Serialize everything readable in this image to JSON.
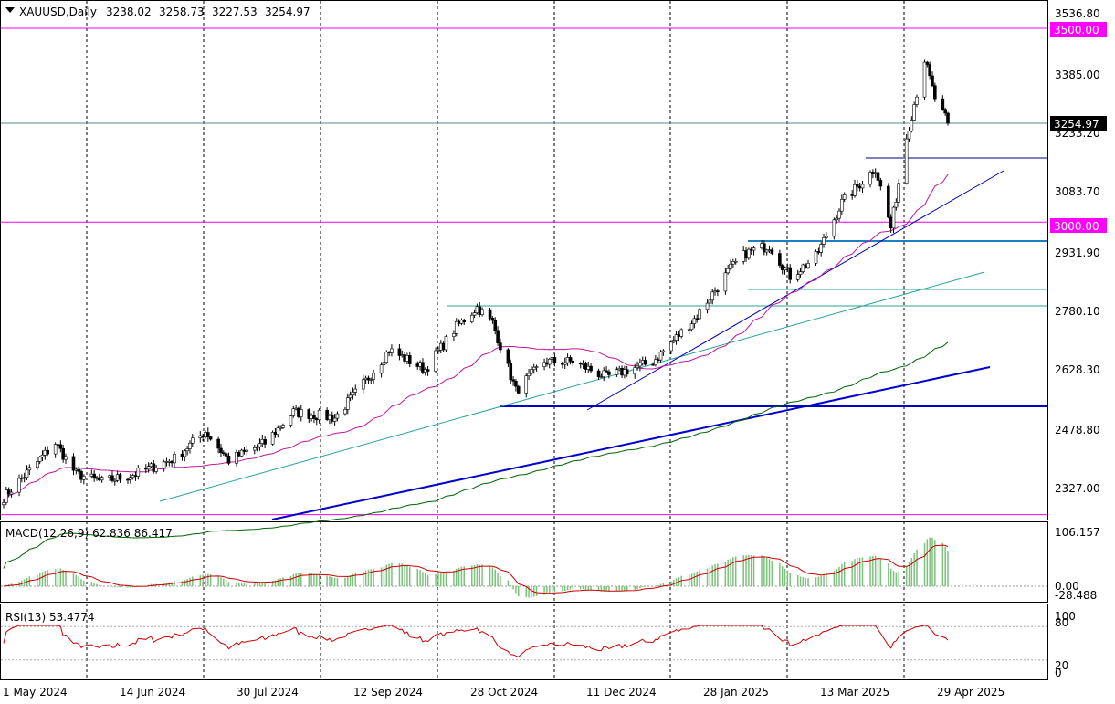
{
  "header": {
    "symbol": "XAUUSD,Daily",
    "open": "3238.02",
    "high": "3258.73",
    "low": "3227.53",
    "close": "3254.97"
  },
  "price_axis": {
    "ticks": [
      "3536.80",
      "3385.00",
      "3233.20",
      "3083.70",
      "2931.90",
      "2780.10",
      "2628.30",
      "2478.80",
      "2327.00"
    ],
    "tick_values": [
      3536.8,
      3385.0,
      3233.2,
      3083.7,
      2931.9,
      2780.1,
      2628.3,
      2478.8,
      2327.0
    ],
    "current_tag": "3254.97",
    "level_tags": [
      "3500.00",
      "3000.00"
    ]
  },
  "time_axis": {
    "labels": [
      "1 May 2024",
      "14 Jun 2024",
      "30 Jul 2024",
      "12 Sep 2024",
      "28 Oct 2024",
      "11 Dec 2024",
      "28 Jan 2025",
      "13 Mar 2025",
      "29 Apr 2025"
    ]
  },
  "macd": {
    "title": "MACD(12,26,9) 62.836 86.417",
    "ticks": [
      "106.157",
      "0.00",
      "-28.488"
    ],
    "tick_values": [
      106.157,
      0,
      -28.488
    ]
  },
  "rsi": {
    "title": "RSI(13) 53.4774",
    "ticks": [
      "100",
      "80",
      "20",
      "0"
    ],
    "tick_values": [
      100,
      80,
      20,
      0
    ]
  },
  "colors": {
    "bull": "#ffffff",
    "bear": "#000000",
    "sma_short": "#c0169c",
    "sma_long": "#006400",
    "trend_blue": "#0000cc",
    "trend_teal": "#2aa198",
    "level_magenta": "#ff00ff",
    "hist": "#7cc27c",
    "signal": "#cc0000"
  },
  "chart_data": {
    "type": "candlestick",
    "title": "XAUUSD,Daily",
    "ylim": [
      2270,
      3560
    ],
    "x_start": "2024-04-30",
    "x_end": "2025-04-30",
    "anchors": [
      {
        "date": "2024-04-30",
        "price": 2290
      },
      {
        "date": "2024-05-10",
        "price": 2360
      },
      {
        "date": "2024-05-20",
        "price": 2430
      },
      {
        "date": "2024-05-28",
        "price": 2350
      },
      {
        "date": "2024-06-07",
        "price": 2330
      },
      {
        "date": "2024-06-20",
        "price": 2350
      },
      {
        "date": "2024-07-05",
        "price": 2390
      },
      {
        "date": "2024-07-17",
        "price": 2460
      },
      {
        "date": "2024-07-26",
        "price": 2385
      },
      {
        "date": "2024-08-09",
        "price": 2430
      },
      {
        "date": "2024-08-20",
        "price": 2510
      },
      {
        "date": "2024-09-05",
        "price": 2495
      },
      {
        "date": "2024-09-17",
        "price": 2590
      },
      {
        "date": "2024-09-26",
        "price": 2670
      },
      {
        "date": "2024-10-10",
        "price": 2620
      },
      {
        "date": "2024-10-22",
        "price": 2730
      },
      {
        "date": "2024-10-30",
        "price": 2780
      },
      {
        "date": "2024-11-05",
        "price": 2740
      },
      {
        "date": "2024-11-14",
        "price": 2565
      },
      {
        "date": "2024-11-25",
        "price": 2640
      },
      {
        "date": "2024-12-06",
        "price": 2640
      },
      {
        "date": "2024-12-19",
        "price": 2600
      },
      {
        "date": "2025-01-06",
        "price": 2640
      },
      {
        "date": "2025-01-22",
        "price": 2750
      },
      {
        "date": "2025-02-05",
        "price": 2880
      },
      {
        "date": "2025-02-11",
        "price": 2920
      },
      {
        "date": "2025-02-20",
        "price": 2940
      },
      {
        "date": "2025-02-28",
        "price": 2860
      },
      {
        "date": "2025-03-10",
        "price": 2910
      },
      {
        "date": "2025-03-20",
        "price": 3050
      },
      {
        "date": "2025-04-02",
        "price": 3140
      },
      {
        "date": "2025-04-08",
        "price": 2985
      },
      {
        "date": "2025-04-14",
        "price": 3220
      },
      {
        "date": "2025-04-21",
        "price": 3420
      },
      {
        "date": "2025-04-25",
        "price": 3320
      },
      {
        "date": "2025-04-30",
        "price": 3254.97
      }
    ],
    "levels": [
      3500.0,
      3000.0
    ],
    "last": {
      "open": 3238.02,
      "high": 3258.73,
      "low": 3227.53,
      "close": 3254.97
    }
  }
}
